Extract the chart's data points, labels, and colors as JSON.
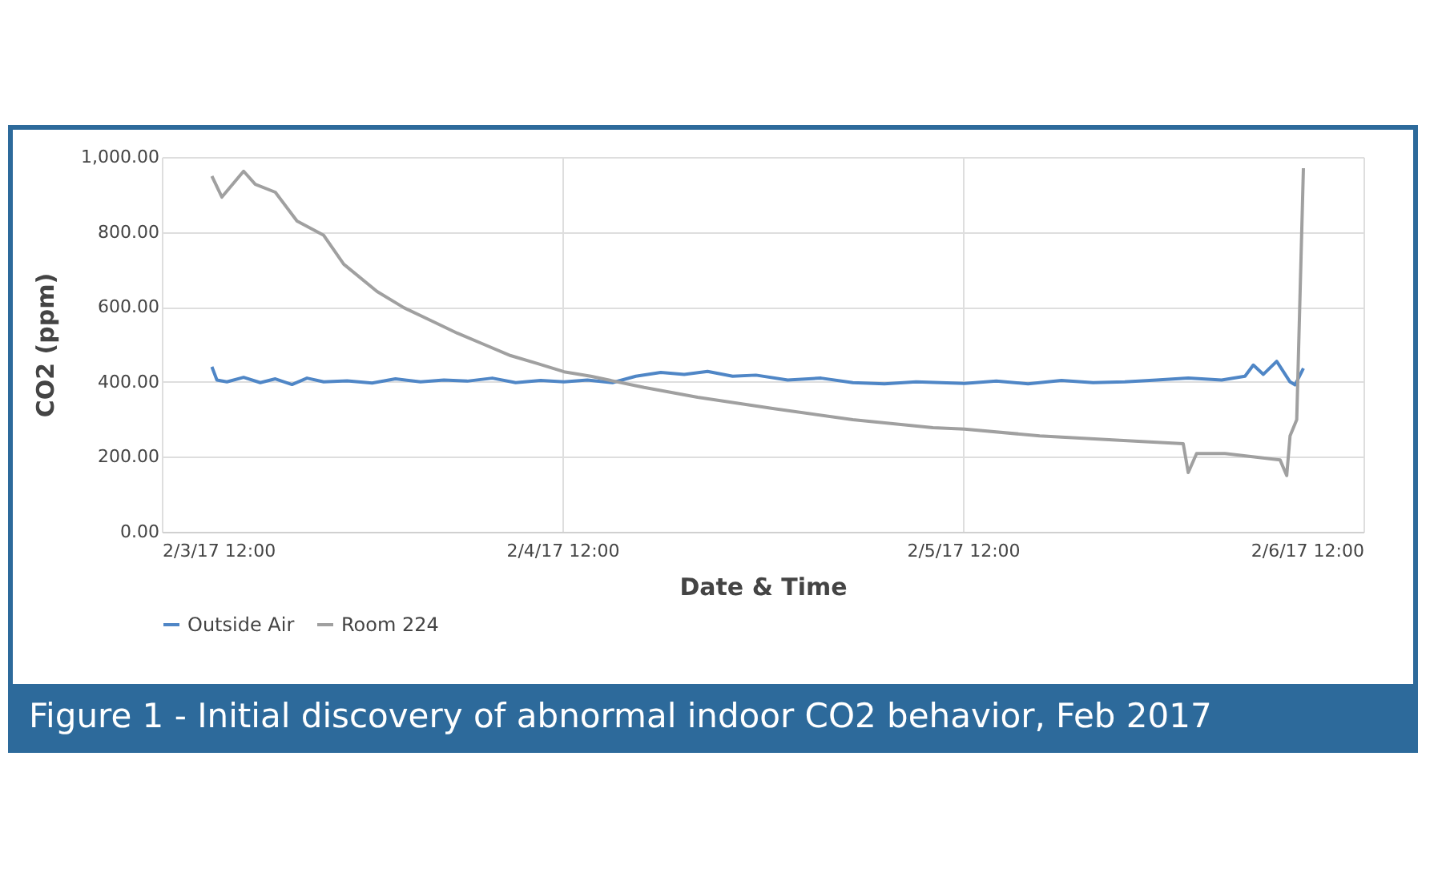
{
  "chart_data": {
    "type": "line",
    "title": "Figure 1 - Initial discovery of abnormal indoor CO2 behavior, Feb 2017",
    "xlabel": "Date & Time",
    "ylabel": "CO2 (ppm)",
    "xlim": [
      "2017-02-03T12:00",
      "2017-02-06T12:00"
    ],
    "xticks": [
      {
        "value": "2017-02-03T12:00",
        "label": "2/3/17 12:00"
      },
      {
        "value": "2017-02-04T12:00",
        "label": "2/4/17 12:00"
      },
      {
        "value": "2017-02-05T12:00",
        "label": "2/5/17 12:00"
      },
      {
        "value": "2017-02-06T12:00",
        "label": "2/6/17 12:00"
      }
    ],
    "ylim": [
      0,
      1000
    ],
    "yticks": [
      {
        "value": 0,
        "label": "0.00"
      },
      {
        "value": 200,
        "label": "200.00"
      },
      {
        "value": 400,
        "label": "400.00"
      },
      {
        "value": 600,
        "label": "600.00"
      },
      {
        "value": 800,
        "label": "800.00"
      },
      {
        "value": 1000,
        "label": "1,000.00"
      }
    ],
    "grid": true,
    "legend": "bottom",
    "line_style": "solid",
    "marker": "none",
    "series": [
      {
        "name": "Outside Air",
        "color": "#4f86c6",
        "x": [
          "2017-02-03T15:00",
          "2017-02-03T15:18",
          "2017-02-03T15:54",
          "2017-02-03T16:54",
          "2017-02-03T17:54",
          "2017-02-03T18:48",
          "2017-02-03T19:48",
          "2017-02-03T20:42",
          "2017-02-03T21:42",
          "2017-02-03T23:06",
          "2017-02-04T00:36",
          "2017-02-04T02:00",
          "2017-02-04T03:30",
          "2017-02-04T04:54",
          "2017-02-04T06:18",
          "2017-02-04T07:48",
          "2017-02-04T09:12",
          "2017-02-04T10:42",
          "2017-02-04T12:06",
          "2017-02-04T13:30",
          "2017-02-04T15:00",
          "2017-02-04T16:24",
          "2017-02-04T17:54",
          "2017-02-04T19:18",
          "2017-02-04T20:42",
          "2017-02-04T22:12",
          "2017-02-04T23:36",
          "2017-02-05T01:30",
          "2017-02-05T03:30",
          "2017-02-05T05:24",
          "2017-02-05T07:18",
          "2017-02-05T09:12",
          "2017-02-05T12:06",
          "2017-02-05T14:00",
          "2017-02-05T15:54",
          "2017-02-05T17:54",
          "2017-02-05T19:48",
          "2017-02-05T21:42",
          "2017-02-05T23:36",
          "2017-02-06T01:30",
          "2017-02-06T03:30",
          "2017-02-06T04:54",
          "2017-02-06T05:24",
          "2017-02-06T06:00",
          "2017-02-06T06:48",
          "2017-02-06T07:36",
          "2017-02-06T07:54",
          "2017-02-06T08:24"
        ],
        "values": [
          440,
          405,
          400,
          412,
          398,
          408,
          393,
          410,
          400,
          403,
          397,
          408,
          400,
          405,
          402,
          410,
          398,
          404,
          400,
          405,
          398,
          415,
          425,
          420,
          428,
          415,
          418,
          405,
          410,
          398,
          395,
          400,
          396,
          402,
          395,
          404,
          398,
          400,
          405,
          410,
          405,
          415,
          445,
          420,
          455,
          400,
          392,
          436
        ]
      },
      {
        "name": "Room 224",
        "color": "#a0a0a0",
        "x": [
          "2017-02-03T15:00",
          "2017-02-03T15:36",
          "2017-02-03T16:54",
          "2017-02-03T17:36",
          "2017-02-03T18:48",
          "2017-02-03T20:06",
          "2017-02-03T21:42",
          "2017-02-03T22:54",
          "2017-02-04T00:54",
          "2017-02-04T02:30",
          "2017-02-04T04:06",
          "2017-02-04T05:42",
          "2017-02-04T07:18",
          "2017-02-04T08:54",
          "2017-02-04T10:30",
          "2017-02-04T12:06",
          "2017-02-04T13:42",
          "2017-02-04T16:54",
          "2017-02-04T20:06",
          "2017-02-05T00:36",
          "2017-02-05T05:24",
          "2017-02-05T10:12",
          "2017-02-05T12:06",
          "2017-02-05T16:36",
          "2017-02-05T21:24",
          "2017-02-06T01:12",
          "2017-02-06T01:30",
          "2017-02-06T02:00",
          "2017-02-06T03:42",
          "2017-02-06T07:00",
          "2017-02-06T07:24",
          "2017-02-06T07:36",
          "2017-02-06T08:00",
          "2017-02-06T08:24"
        ],
        "values": [
          949,
          893,
          962,
          927,
          906,
          829,
          791,
          714,
          641,
          598,
          564,
          530,
          500,
          470,
          449,
          427,
          415,
          385,
          359,
          329,
          299,
          278,
          274,
          256,
          244,
          235,
          158,
          209,
          209,
          192,
          150,
          256,
          299,
          970
        ]
      }
    ]
  }
}
